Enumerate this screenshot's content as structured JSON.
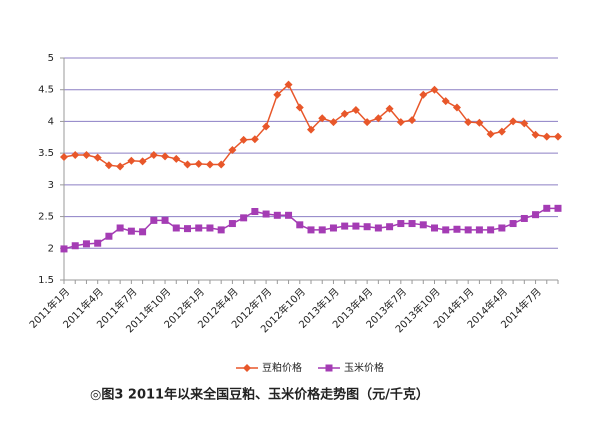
{
  "chart_data": {
    "type": "line",
    "caption": "◎图3  2011年以来全国豆粕、玉米价格走势图（元/千克）",
    "categories": [
      "2011年1月",
      null,
      null,
      "2011年4月",
      null,
      null,
      "2011年7月",
      null,
      null,
      "2011年10月",
      null,
      null,
      "2012年1月",
      null,
      null,
      "2012年4月",
      null,
      null,
      "2012年7月",
      null,
      null,
      "2012年10月",
      null,
      null,
      "2013年1月",
      null,
      null,
      "2013年4月",
      null,
      null,
      "2013年7月",
      null,
      null,
      "2013年10月",
      null,
      null,
      "2014年1月",
      null,
      null,
      "2014年4月",
      null,
      null,
      "2014年7月",
      null,
      null
    ],
    "series": [
      {
        "name": "豆粕价格",
        "color": "#e8572a",
        "marker": "diamond",
        "values": [
          3.44,
          3.47,
          3.47,
          3.43,
          3.31,
          3.29,
          3.38,
          3.37,
          3.47,
          3.45,
          3.41,
          3.32,
          3.33,
          3.32,
          3.32,
          3.55,
          3.71,
          3.72,
          3.92,
          4.42,
          4.58,
          4.22,
          3.87,
          4.05,
          3.99,
          4.12,
          4.18,
          3.99,
          4.05,
          4.2,
          3.99,
          4.02,
          4.42,
          4.5,
          4.32,
          4.22,
          3.99,
          3.98,
          3.8,
          3.84,
          4.0,
          3.97,
          3.79,
          3.76,
          3.76
        ]
      },
      {
        "name": "玉米价格",
        "color": "#a43cb4",
        "marker": "square",
        "values": [
          1.99,
          2.04,
          2.07,
          2.08,
          2.19,
          2.32,
          2.27,
          2.26,
          2.44,
          2.44,
          2.32,
          2.31,
          2.32,
          2.32,
          2.29,
          2.39,
          2.48,
          2.58,
          2.54,
          2.52,
          2.52,
          2.37,
          2.29,
          2.29,
          2.32,
          2.35,
          2.35,
          2.34,
          2.32,
          2.34,
          2.39,
          2.39,
          2.37,
          2.32,
          2.29,
          2.3,
          2.29,
          2.29,
          2.29,
          2.32,
          2.39,
          2.47,
          2.53,
          2.63,
          2.63
        ]
      }
    ],
    "ylim": [
      1.5,
      5
    ],
    "yticks": [
      1.5,
      2,
      2.5,
      3,
      3.5,
      4,
      4.5,
      5
    ],
    "grid": true,
    "legend": "bottom"
  }
}
